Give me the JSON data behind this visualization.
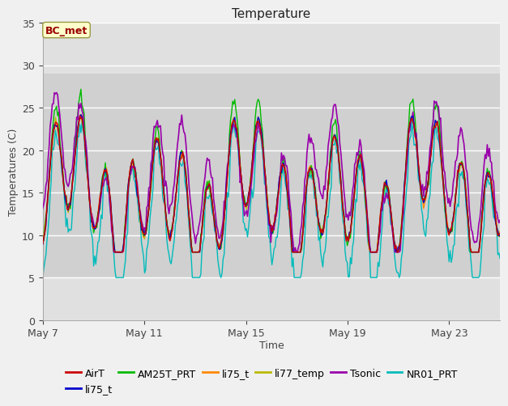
{
  "title": "Temperature",
  "xlabel": "Time",
  "ylabel": "Temperatures (C)",
  "ylim": [
    0,
    35
  ],
  "xlim": [
    7,
    25
  ],
  "xtick_labels": [
    "May 7",
    "May 11",
    "May 15",
    "May 19",
    "May 23"
  ],
  "xtick_positions": [
    7,
    11,
    15,
    19,
    23
  ],
  "legend_labels": [
    "AirT",
    "li75_t",
    "AM25T_PRT",
    "li75_t",
    "li77_temp",
    "Tsonic",
    "NR01_PRT"
  ],
  "legend_colors": [
    "#cc0000",
    "#0000cc",
    "#00bb00",
    "#ff8800",
    "#bbbb00",
    "#9900aa",
    "#00bbbb"
  ],
  "annotation_text": "BC_met",
  "annotation_color": "#990000",
  "annotation_bg": "#ffffcc",
  "annotation_edge": "#999944",
  "fig_facecolor": "#f0f0f0",
  "ax_facecolor": "#e0e0e0",
  "span_ymin": 5,
  "span_ymax": 29,
  "span_color": "#d0d0d0",
  "grid_color": "#ffffff",
  "title_fontsize": 11,
  "axis_label_fontsize": 9,
  "tick_fontsize": 9,
  "legend_fontsize": 9,
  "line_width": 1.0
}
